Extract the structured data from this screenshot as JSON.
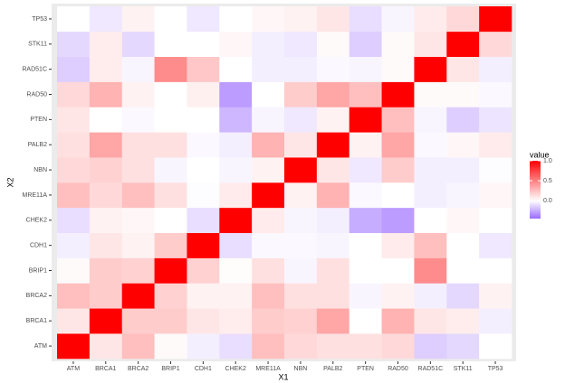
{
  "chart_data": {
    "type": "heatmap",
    "categories": [
      "ATM",
      "BRCA1",
      "BRCA2",
      "BRIP1",
      "CDH1",
      "CHEK2",
      "MRE11A",
      "NBN",
      "PALB2",
      "PTEN",
      "RAD50",
      "RAD51C",
      "STK11",
      "TP53"
    ],
    "xlabel": "X1",
    "ylabel": "X2",
    "values": [
      [
        1,
        0.1,
        0.25,
        0.02,
        -0.05,
        -0.1,
        0.25,
        0.15,
        0.12,
        0.12,
        0.15,
        -0.15,
        -0.12,
        0
      ],
      [
        0.1,
        1,
        0.2,
        0.2,
        0.1,
        0.07,
        0.2,
        0.18,
        0.35,
        0,
        0.3,
        0.1,
        0.07,
        -0.05
      ],
      [
        0.25,
        0.2,
        1,
        0.18,
        0.05,
        0.05,
        0.25,
        0.12,
        0.12,
        -0.03,
        0.05,
        -0.05,
        -0.12,
        0.05
      ],
      [
        0.02,
        0.2,
        0.18,
        1,
        0.18,
        0.01,
        0.12,
        -0.03,
        0.12,
        0,
        0,
        0.45,
        0,
        0
      ],
      [
        -0.05,
        0.1,
        0.05,
        0.2,
        1,
        -0.1,
        -0.02,
        -0.02,
        -0.03,
        0,
        0.08,
        0.25,
        0,
        -0.07
      ],
      [
        -0.1,
        0.05,
        0.03,
        0,
        -0.1,
        1,
        0.08,
        -0.03,
        -0.05,
        -0.25,
        -0.3,
        0,
        0.03,
        0
      ],
      [
        0.25,
        0.15,
        0.25,
        0.12,
        -0.01,
        0.08,
        1,
        0.05,
        0.3,
        -0.02,
        0,
        -0.05,
        -0.03,
        0.03
      ],
      [
        0.15,
        0.18,
        0.12,
        -0.03,
        0,
        -0.03,
        0.05,
        1,
        0.1,
        -0.07,
        0.2,
        -0.05,
        -0.05,
        -0.01
      ],
      [
        0.12,
        0.35,
        0.12,
        0.12,
        -0.02,
        -0.05,
        0.3,
        0.1,
        1,
        0.05,
        0.35,
        -0.02,
        0.03,
        0.08
      ],
      [
        0.1,
        0,
        -0.02,
        0,
        0,
        -0.22,
        -0.03,
        -0.07,
        0.05,
        1,
        0.25,
        -0.03,
        -0.15,
        -0.08
      ],
      [
        0.15,
        0.3,
        0.05,
        0,
        0.06,
        -0.3,
        0,
        0.2,
        0.35,
        0.25,
        1,
        0.02,
        0.02,
        -0.02
      ],
      [
        -0.15,
        0.07,
        -0.03,
        0.45,
        0.22,
        0,
        -0.05,
        -0.05,
        -0.02,
        -0.03,
        0.02,
        1,
        0.1,
        -0.05
      ],
      [
        -0.12,
        0.07,
        -0.12,
        0,
        0,
        0.03,
        -0.05,
        -0.07,
        0.02,
        -0.15,
        0.02,
        0.1,
        1,
        0.15
      ],
      [
        0,
        -0.07,
        0.05,
        0,
        -0.07,
        0,
        0.03,
        0.05,
        0.1,
        -0.1,
        -0.03,
        0.08,
        0.15,
        1
      ]
    ],
    "legend_title": "value",
    "clim": [
      -0.45,
      1
    ],
    "cticks": [
      {
        "value": 0,
        "label": "0.0"
      },
      {
        "value": 0.5,
        "label": "0.5"
      },
      {
        "value": 1,
        "label": "1.0"
      }
    ],
    "color_low": "#9b6bff",
    "color_mid": "#ffffff",
    "color_high": "#ff0000",
    "panel_background": "#ebebeb"
  }
}
